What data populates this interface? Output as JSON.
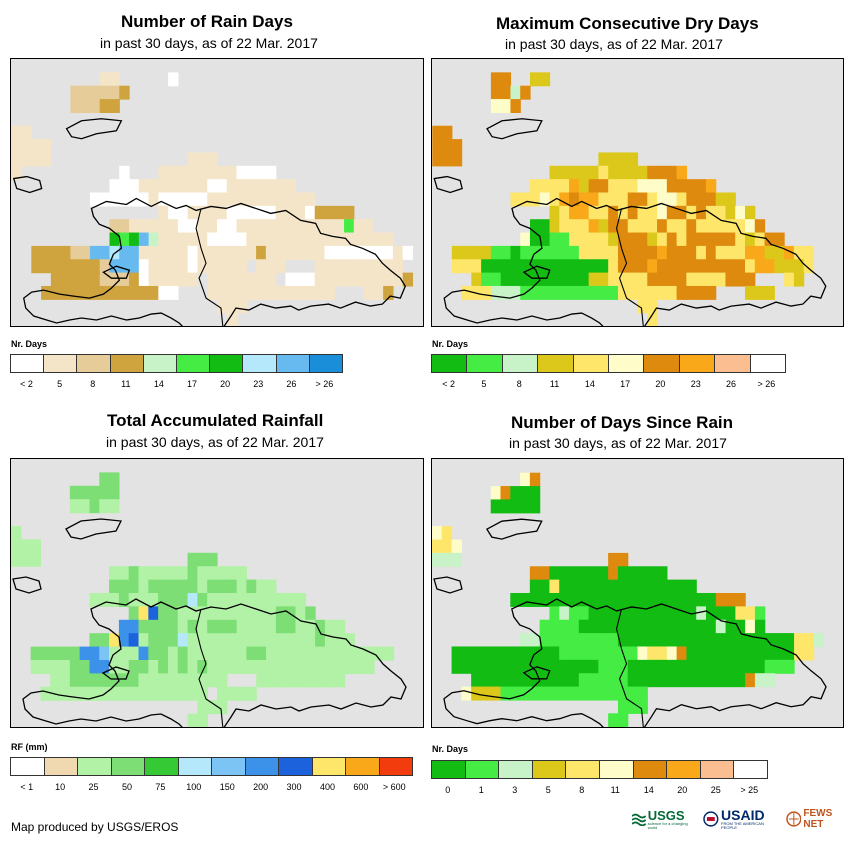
{
  "credit": "Map produced by USGS/EROS",
  "logos": {
    "usgs": "USGS",
    "usgs_tagline": "science for a changing world",
    "usaid": "USAID",
    "usaid_tagline": "FROM THE AMERICAN PEOPLE",
    "fews": "FEWS NET"
  },
  "panels": [
    {
      "title": "Number of Rain Days",
      "subtitle": "in past 30 days, as of 22 Mar. 2017",
      "legend_title": "Nr. Days",
      "legend_labels": [
        "< 2",
        "5",
        "8",
        "11",
        "14",
        "17",
        "20",
        "23",
        "26",
        "> 26"
      ],
      "legend_colors": [
        "#ffffff",
        "#f5e5c8",
        "#e6cc98",
        "#cfa43e",
        "#c8f2c8",
        "#44ec44",
        "#13bc13",
        "#b4e8fa",
        "#66baf0",
        "#1a8ed8"
      ],
      "legend_label_mode": "boundary"
    },
    {
      "title": "Maximum Consecutive Dry Days",
      "subtitle": "in past 30 days, as of 22 Mar. 2017",
      "legend_title": "Nr. Days",
      "legend_labels": [
        "< 2",
        "5",
        "8",
        "11",
        "14",
        "17",
        "20",
        "23",
        "26",
        "> 26"
      ],
      "legend_colors": [
        "#13bc13",
        "#44ec44",
        "#c8f2c8",
        "#dbc81a",
        "#fde66a",
        "#fefcc8",
        "#de8a0e",
        "#f8a818",
        "#fbbe90",
        "#ffffff"
      ],
      "legend_label_mode": "boundary"
    },
    {
      "title": "Total Accumulated Rainfall",
      "subtitle": "in past 30 days, as of 22 Mar. 2017",
      "legend_title": "RF (mm)",
      "legend_labels": [
        "< 1",
        "10",
        "25",
        "50",
        "75",
        "100",
        "150",
        "200",
        "300",
        "400",
        "600",
        "> 600"
      ],
      "legend_colors": [
        "#ffffff",
        "#f0d8b0",
        "#b2f2a6",
        "#7cde74",
        "#36c936",
        "#b4e8fa",
        "#7cc4f4",
        "#3b92e8",
        "#1c62dd",
        "#fde66a",
        "#f8a818",
        "#f23c0e"
      ],
      "legend_label_mode": "boundary"
    },
    {
      "title": "Number of Days Since Rain",
      "subtitle": "in past 30 days, as of 22 Mar. 2017",
      "legend_title": "Nr. Days",
      "legend_labels": [
        "0",
        "1",
        "3",
        "5",
        "8",
        "11",
        "14",
        "20",
        "25",
        "> 25"
      ],
      "legend_colors": [
        "#13bc13",
        "#44ec44",
        "#c8f2c8",
        "#dbc81a",
        "#fde66a",
        "#fefcc8",
        "#de8a0e",
        "#f8a818",
        "#fbbe90",
        "#ffffff"
      ],
      "legend_label_mode": "center"
    }
  ],
  "map_rows": [
    [
      "..........................................",
      ".........aa.....b.........................",
      "......dddddc..............................",
      "......dddcc...............................",
      "..........................................",
      "aa........................................",
      "aaaa......................................",
      "aaaa..............aaa......................",
      "a..........b...aaaaaaaabbbb...............",
      "..........bbbaaaaaaabbaaaaaaa.............",
      "........bbbbbbabbbbbaaaaaaaaaaa...........",
      "...............abbaaaabbbbbaaabcccc.......",
      "..........ddaaaaabbaabbaaaaaaaaaaaeaa.....",
      "..........fefhgaaaaabbbbaaaaaaaaaaaaaaa...",
      "..ccccddhhjhhaaaaabaaaaaacaaaaaabbbbbbbab.",
      "..cccccccdhhhbaaaabaaaaa.aaa...aaaaaaaaa..",
      "....cccccdddcbaaaaa.aaaaaaa.bbbaaaaaaaaac.",
      "...ccccccccccccbb...aaaaaaaaaaaaa...aac...",
      ".....................aaa..................",
      "......................a..................."
    ],
    [
      "..........................................",
      "......gg..dd..............................",
      "......ggcg................................",
      "......eeg.................................",
      "..........................................",
      "gg........................................",
      "ggg.......................................",
      "ggg..............dddd.....................",
      "............dddddfddddgggh................",
      "..........ffffhdggfffeeeggggh.............",
      "........fffefhghhfffggfeefgggdd...........",
      "............dfhhffgfgffeggfgffded.........",
      "..........aadfffhdggfffgffgfffffeg........",
      ".........eaabbffffdgggdfgfgggggfdfgg......",
      "..ddddbbabbbbbbffffgggghgggfgfffhhddhff...",
      "..fffaaaaaaaaaaaaafggghgggggggggfhhdddf...",
      "....dbbaaaaaaaaaddffffggggffffggg...fd....",
      "...fffcccbbbbbbbbbbffffffgggg...ddd.......",
      ".....................ff...................",
      "......................f..................."
    ],
    [
      "..........................................",
      ".........dd...............................",
      "......ddddd...............................",
      "......ccdcc...............................",
      "..........................................",
      "c.........................................",
      "ccc.......................................",
      "ccc...............ddd.....................",
      "..........ccdcccccdccccc..................",
      "..........dddcdddddcdddcdcc...............",
      "........cccdcccdddedcccccccccc............",
      "............dfgddccccccccccddcd...........",
      "...........hhddddcdcdddccccddccdcc........",
      "........ddfhgcdddecccccccccccccdccc.......",
      "..dddddhhiccchddcdccccccddccccccccccccc...",
      "..ccccddhhccddcdcdcdccccccccccccccccc.....",
      "....ccdddddddccccccccc...ccccccccc........",
      "...ccccccccccccccccc.cccc.................",
      "...................ccc....................",
      "..................cc......................"
    ],
    [
      "..........................................",
      ".........fg...............................",
      "......fgaaa...............................",
      "......aaaaa...............................",
      "..........................................",
      "fe........................................",
      "eef.......................................",
      "ccc...............gg......................",
      "..........ggaaaaaagaaaaa..................",
      "..........aaeaaaaaaaaaaaaaa...............",
      "........aaaaaaaaaaaaaaaaaaaaaggg..........",
      "............bcbbaaaaaaaaaaacaaaeeb........",
      "...........bbbbaaaaaaaaaaaaaacaafa........",
      ".........ccbbbbbbbbaaaaaaaaaaaaaaaaaaeec...",
      "..aaaaaaaaaaabbbbbbbbfeefgaaaaaaaaaaaee...",
      "..aaaaaaaaaaaaaaabbbaaaaaaaaaaaaaabbb.....",
      "....aaaaaaaaaaabbbbbaaaaaaaaaaaagcc.......",
      "...fdddbbbbbbbbbbbbbbb..................",
      "...................bbb....................",
      "..................bb......................"
    ]
  ],
  "map_palettes": [
    {
      "a": "#f5e5c8",
      "b": "#ffffff",
      "c": "#cfa43e",
      "d": "#e6cc98",
      "e": "#44ec44",
      "f": "#13bc13",
      "g": "#c8f2c8",
      "h": "#66baf0",
      "i": "#1a8ed8",
      "j": "#b4e8fa"
    },
    {
      "a": "#13bc13",
      "b": "#44ec44",
      "c": "#c8f2c8",
      "d": "#dbc81a",
      "e": "#fefcc8",
      "f": "#fde66a",
      "g": "#de8a0e",
      "h": "#f8a818"
    },
    {
      "a": "#36c936",
      "b": "#b2f2a6",
      "c": "#b2f2a6",
      "d": "#7cde74",
      "e": "#b4e8fa",
      "f": "#fde66a",
      "g": "#1c62dd",
      "h": "#3b92e8",
      "i": "#7cc4f4"
    },
    {
      "a": "#13bc13",
      "b": "#44ec44",
      "c": "#c8f2c8",
      "d": "#dbc81a",
      "e": "#fde66a",
      "f": "#fefcc8",
      "g": "#de8a0e"
    }
  ]
}
